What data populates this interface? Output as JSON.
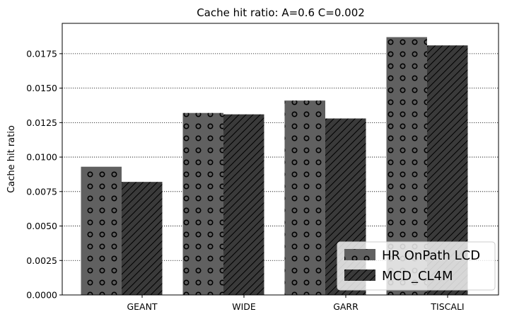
{
  "chart_data": {
    "type": "bar",
    "title": "Cache hit ratio: A=0.6 C=0.002",
    "xlabel": "",
    "ylabel": "Cache hit ratio",
    "categories": [
      "GEANT",
      "WIDE",
      "GARR",
      "TISCALI"
    ],
    "series": [
      {
        "name": "HR OnPath LCD",
        "values": [
          0.0093,
          0.0132,
          0.0141,
          0.0187
        ],
        "color": "#606060",
        "pattern": "circles"
      },
      {
        "name": "MCD_CL4M",
        "values": [
          0.0082,
          0.0131,
          0.0128,
          0.0181
        ],
        "color": "#3a3a3a",
        "pattern": "diagonal-hatch"
      }
    ],
    "ylim": [
      0,
      0.0197
    ],
    "yticks": [
      "0.0000",
      "0.0025",
      "0.0050",
      "0.0075",
      "0.0100",
      "0.0125",
      "0.0150",
      "0.0175"
    ],
    "grid": "y-dotted",
    "legend_position": "lower-right"
  }
}
